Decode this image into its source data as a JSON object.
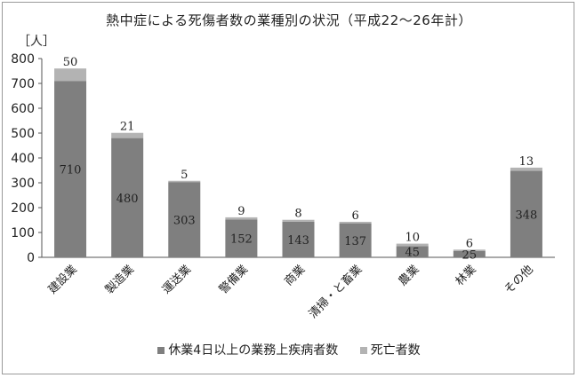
{
  "chart_data": {
    "type": "bar",
    "stacked": true,
    "title": "熱中症による死傷者数の業種別の状況（平成22～26年計）",
    "unit_label": "［人］",
    "categories": [
      "建設業",
      "製造業",
      "運送業",
      "警備業",
      "商業",
      "清掃・と畜業",
      "農業",
      "林業",
      "その他"
    ],
    "series": [
      {
        "name": "休業4日以上の業務上疾病者数",
        "values": [
          710,
          480,
          303,
          152,
          143,
          137,
          45,
          25,
          348
        ],
        "color": "#7f7f7f"
      },
      {
        "name": "死亡者数",
        "values": [
          50,
          21,
          5,
          9,
          8,
          6,
          10,
          6,
          13
        ],
        "color": "#b3b3b3"
      }
    ],
    "ylim": [
      0,
      800
    ],
    "yticks": [
      0,
      100,
      200,
      300,
      400,
      500,
      600,
      700,
      800
    ],
    "grid": false,
    "legend_position": "bottom"
  }
}
